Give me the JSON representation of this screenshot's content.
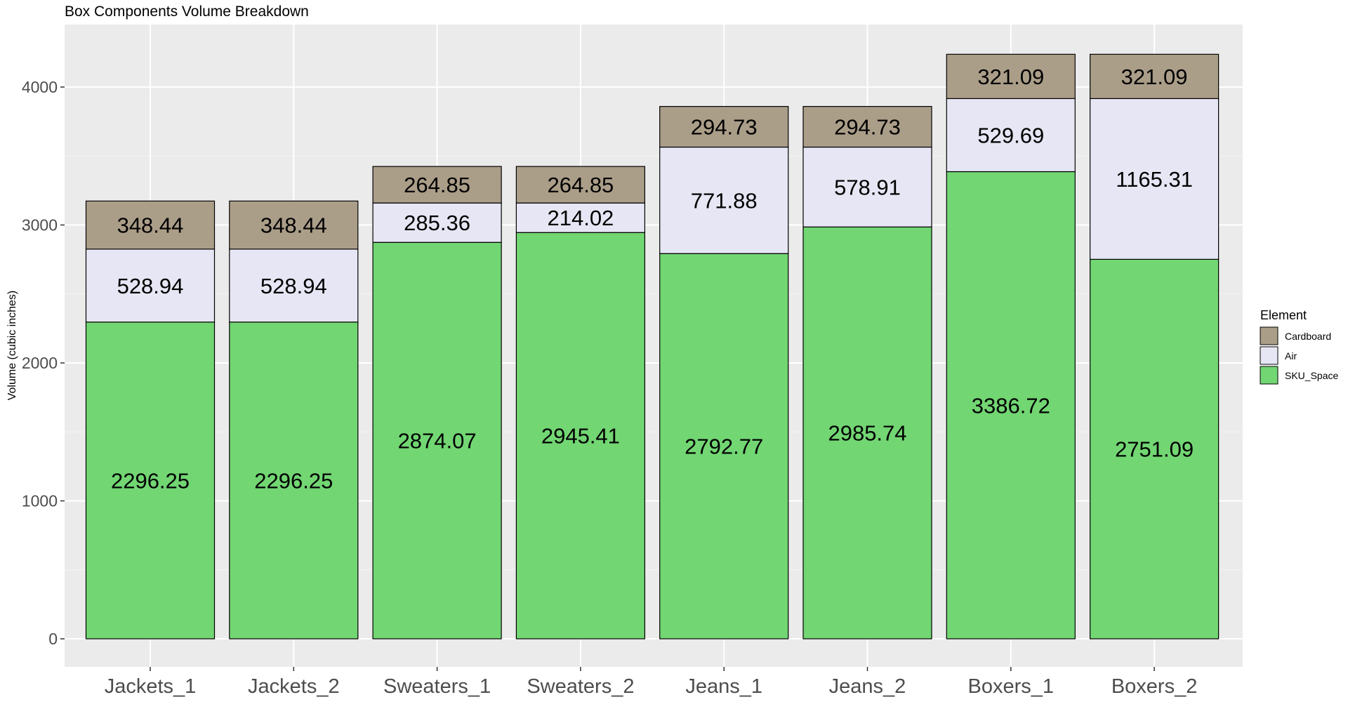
{
  "chart_data": {
    "type": "bar",
    "stacked": true,
    "title": "Box Components Volume Breakdown",
    "xlabel": "",
    "ylabel": "Volume (cubic inches)",
    "ylim": [
      -190,
      4400
    ],
    "yticks": [
      0,
      1000,
      2000,
      3000,
      4000
    ],
    "grid": true,
    "legend_position": "right",
    "categories": [
      "Jackets_1",
      "Jackets_2",
      "Sweaters_1",
      "Sweaters_2",
      "Jeans_1",
      "Jeans_2",
      "Boxers_1",
      "Boxers_2"
    ],
    "series": [
      {
        "name": "SKU_Space",
        "color": "#72d673",
        "values": [
          2296.25,
          2296.25,
          2874.07,
          2945.41,
          2792.77,
          2985.74,
          3386.72,
          2751.09
        ]
      },
      {
        "name": "Air",
        "color": "#e6e6f4",
        "values": [
          528.94,
          528.94,
          285.36,
          214.02,
          771.88,
          578.91,
          529.69,
          1165.31
        ]
      },
      {
        "name": "Cardboard",
        "color": "#ab9e89",
        "values": [
          348.44,
          348.44,
          264.85,
          264.85,
          294.73,
          294.73,
          321.09,
          321.09
        ]
      }
    ],
    "legend": {
      "title": "Element",
      "entries": [
        "Cardboard",
        "Air",
        "SKU_Space"
      ]
    }
  }
}
